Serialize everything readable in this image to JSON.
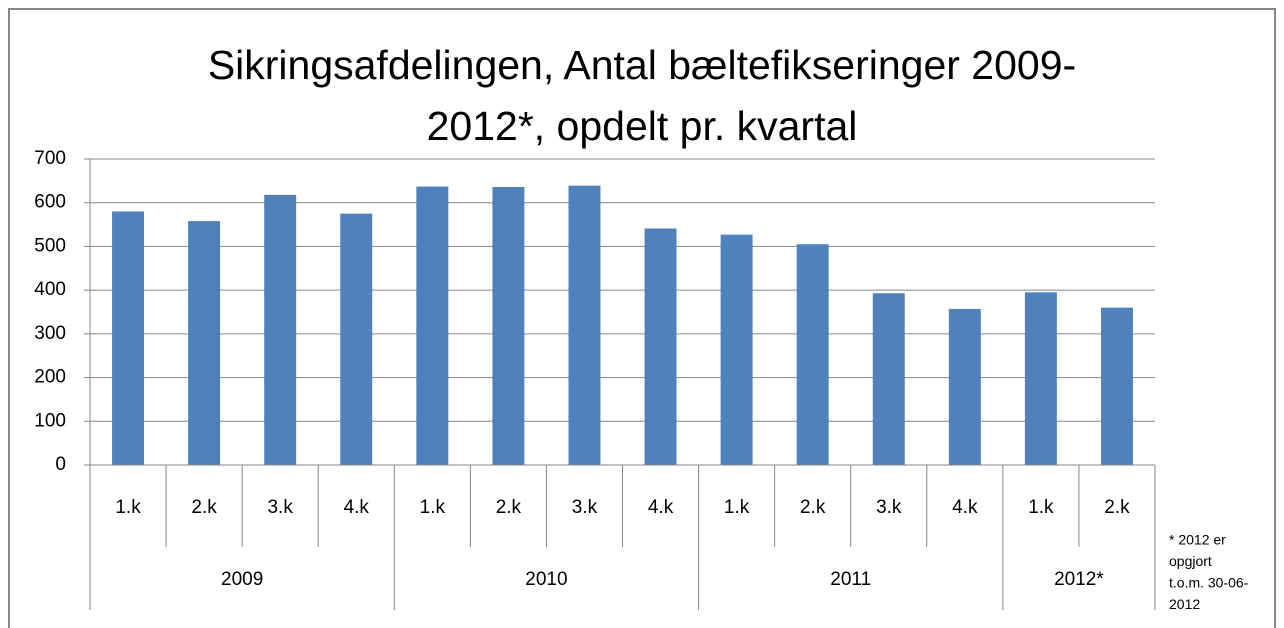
{
  "chart_data": {
    "type": "bar",
    "title": [
      "Sikringsafdelingen, Antal bæltefikseringer 2009-",
      "2012*, opdelt pr. kvartal"
    ],
    "groups": [
      {
        "label": "2009",
        "categories": [
          "1.k",
          "2.k",
          "3.k",
          "4.k"
        ]
      },
      {
        "label": "2010",
        "categories": [
          "1.k",
          "2.k",
          "3.k",
          "4.k"
        ]
      },
      {
        "label": "2011",
        "categories": [
          "1.k",
          "2.k",
          "3.k",
          "4.k"
        ]
      },
      {
        "label": "2012*",
        "categories": [
          "1.k",
          "2.k"
        ]
      }
    ],
    "values": [
      580,
      558,
      618,
      575,
      637,
      636,
      639,
      541,
      527,
      505,
      393,
      357,
      395,
      360
    ],
    "color": "#4f81bd",
    "ylim": [
      0,
      700
    ],
    "yticks": [
      0,
      100,
      200,
      300,
      400,
      500,
      600,
      700
    ],
    "grid": true,
    "annotation": [
      "* 2012 er",
      "opgjort",
      "t.o.m. 30-06-",
      "2012"
    ]
  }
}
